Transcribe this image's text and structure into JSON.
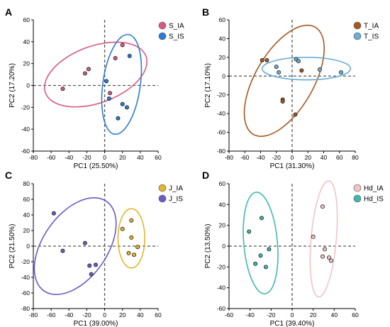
{
  "chart_data": [
    {
      "type": "scatter",
      "panel": "A",
      "xlabel": "PC1 (25.50%)",
      "ylabel": "PC2 (17.20%)",
      "xlim": [
        -80,
        60
      ],
      "ylim": [
        -60,
        60
      ],
      "xticks": [
        -80,
        -60,
        -40,
        -20,
        0,
        20,
        40,
        60
      ],
      "yticks": [
        -60,
        -40,
        -20,
        0,
        20,
        40,
        60
      ],
      "legend_position": "top-right",
      "series": [
        {
          "name": "S_IA",
          "color": "#d9587f",
          "points": [
            [
              -47,
              -3
            ],
            [
              -22,
              11
            ],
            [
              -18,
              15
            ],
            [
              12,
              25
            ],
            [
              20,
              37
            ],
            [
              6,
              -7
            ]
          ],
          "ellipse": {
            "cx": -10,
            "cy": 10,
            "rx": 60,
            "ry": 26,
            "angle": 20
          }
        },
        {
          "name": "S_IS",
          "color": "#2b7bd9",
          "points": [
            [
              28,
              27
            ],
            [
              2,
              4
            ],
            [
              5,
              -12
            ],
            [
              20,
              -17
            ],
            [
              25,
              -20
            ],
            [
              15,
              -30
            ]
          ],
          "ellipse": {
            "cx": 19,
            "cy": 1,
            "rx": 21,
            "ry": 46,
            "angle": -8
          }
        }
      ]
    },
    {
      "type": "scatter",
      "panel": "B",
      "xlabel": "PC1 (31.30%)",
      "ylabel": "PC2 (17.10%)",
      "xlim": [
        -80,
        80
      ],
      "ylim": [
        -80,
        60
      ],
      "xticks": [
        -80,
        -60,
        -40,
        -20,
        0,
        20,
        40,
        60,
        80
      ],
      "yticks": [
        -80,
        -60,
        -40,
        -20,
        0,
        20,
        40,
        60
      ],
      "legend_position": "top-right",
      "series": [
        {
          "name": "T_IA",
          "color": "#a6581f",
          "points": [
            [
              -38,
              17
            ],
            [
              -32,
              17
            ],
            [
              -12,
              -25
            ],
            [
              -12,
              -27
            ],
            [
              4,
              -41
            ],
            [
              12,
              6
            ]
          ],
          "ellipse": {
            "cx": -10,
            "cy": -5,
            "rx": 37,
            "ry": 66,
            "angle": -30
          }
        },
        {
          "name": "T_IS",
          "color": "#6aaed6",
          "points": [
            [
              -20,
              10
            ],
            [
              -17,
              4
            ],
            [
              5,
              18
            ],
            [
              8,
              16
            ],
            [
              35,
              7
            ],
            [
              62,
              4
            ]
          ],
          "ellipse": {
            "cx": 18,
            "cy": 8,
            "rx": 56,
            "ry": 12,
            "angle": 0
          }
        }
      ]
    },
    {
      "type": "scatter",
      "panel": "C",
      "xlabel": "PC1 (39.00%)",
      "ylabel": "PC2 (21.50%)",
      "xlim": [
        -80,
        60
      ],
      "ylim": [
        -80,
        80
      ],
      "xticks": [
        -80,
        -60,
        -40,
        -20,
        0,
        20,
        40,
        60
      ],
      "yticks": [
        -80,
        -60,
        -40,
        -20,
        0,
        20,
        40,
        60,
        80
      ],
      "legend_position": "top-right",
      "series": [
        {
          "name": "J_IA",
          "color": "#e3b52a",
          "points": [
            [
              30,
              33
            ],
            [
              20,
              22
            ],
            [
              30,
              11
            ],
            [
              37,
              -1
            ],
            [
              27,
              -9
            ],
            [
              33,
              -11
            ]
          ],
          "ellipse": {
            "cx": 30,
            "cy": 10,
            "rx": 15,
            "ry": 38,
            "angle": 0
          }
        },
        {
          "name": "J_IS",
          "color": "#6a5bc5",
          "points": [
            [
              -57,
              42
            ],
            [
              -47,
              -6
            ],
            [
              -22,
              4
            ],
            [
              -17,
              -25
            ],
            [
              -10,
              -24
            ],
            [
              -15,
              -36
            ]
          ],
          "ellipse": {
            "cx": -33,
            "cy": 0,
            "rx": 36,
            "ry": 70,
            "angle": -35
          }
        }
      ]
    },
    {
      "type": "scatter",
      "panel": "D",
      "xlabel": "PC1 (39.40%)",
      "ylabel": "PC2 (13.50%)",
      "xlim": [
        -60,
        60
      ],
      "ylim": [
        -60,
        60
      ],
      "xticks": [
        -60,
        -40,
        -20,
        0,
        20,
        40,
        60
      ],
      "yticks": [
        -60,
        -40,
        -20,
        0,
        20,
        40,
        60
      ],
      "legend_position": "top-right",
      "series": [
        {
          "name": "Hd_IA",
          "color": "#f3c3c6",
          "points": [
            [
              29,
              38
            ],
            [
              20,
              9
            ],
            [
              31,
              -3
            ],
            [
              29,
              -10
            ],
            [
              35,
              -11
            ],
            [
              37,
              -14
            ]
          ],
          "ellipse": {
            "cx": 30,
            "cy": 7,
            "rx": 12,
            "ry": 56,
            "angle": -5
          }
        },
        {
          "name": "Hd_IS",
          "color": "#3fb8ad",
          "points": [
            [
              -41,
              14
            ],
            [
              -29,
              27
            ],
            [
              -22,
              -3
            ],
            [
              -30,
              -9
            ],
            [
              -35,
              -17
            ],
            [
              -25,
              -20
            ]
          ],
          "ellipse": {
            "cx": -30,
            "cy": 3,
            "rx": 16,
            "ry": 49,
            "angle": 5
          }
        }
      ]
    }
  ]
}
